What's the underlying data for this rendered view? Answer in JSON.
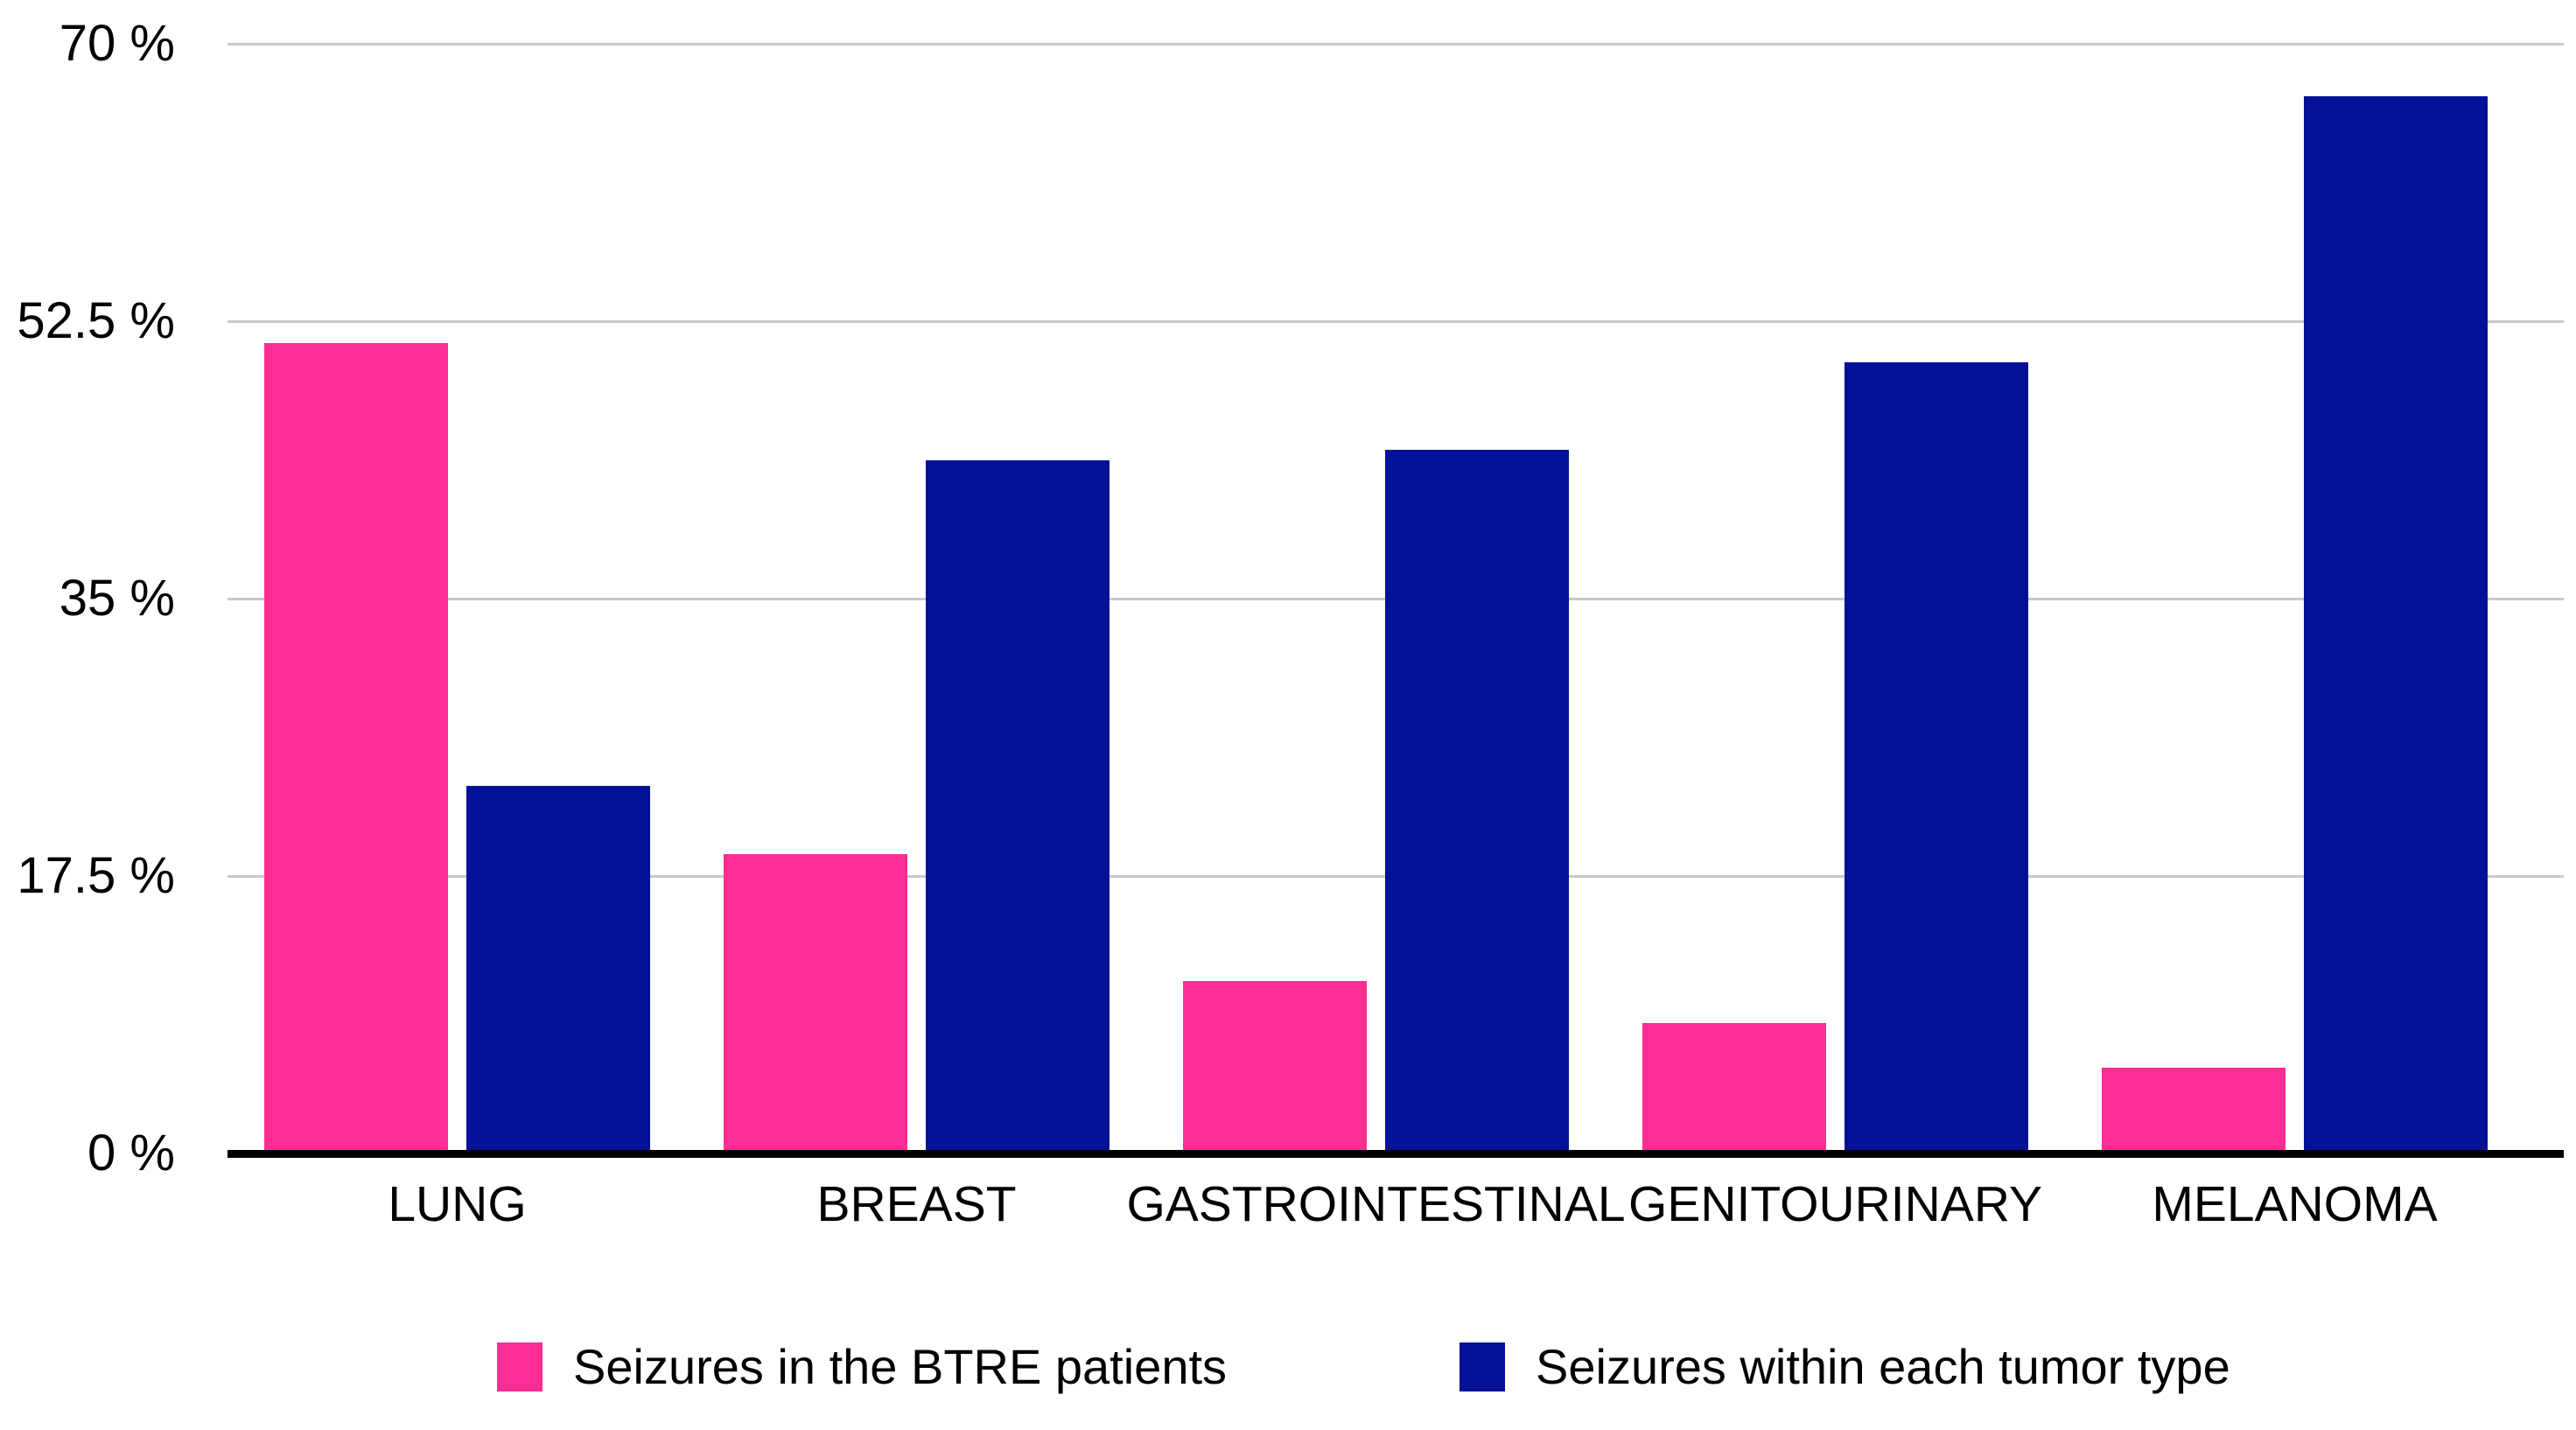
{
  "chart_data": {
    "type": "bar",
    "title": "",
    "xlabel": "",
    "ylabel": "",
    "categories": [
      "LUNG",
      "BREAST",
      "GASTROINTESTINAL",
      "GENITOURINARY",
      "MELANOMA"
    ],
    "series": [
      {
        "name": "Seizures in the BTRE patients",
        "color": "#FC2D94",
        "values": [
          51.1,
          18.9,
          10.9,
          8.2,
          5.4
        ]
      },
      {
        "name": "Seizures within each tumor type",
        "color": "#041196",
        "values": [
          23.2,
          43.7,
          44.4,
          49.9,
          66.7
        ]
      }
    ],
    "y_ticks": [
      {
        "value": 70,
        "label": "70 %"
      },
      {
        "value": 52.5,
        "label": "52.5 %"
      },
      {
        "value": 35,
        "label": "35 %"
      },
      {
        "value": 17.5,
        "label": "17.5 %"
      },
      {
        "value": 0,
        "label": "0 %"
      }
    ],
    "ylim": [
      0,
      70
    ],
    "grid": "horizontal",
    "legend_position": "bottom",
    "gridline_color": "#C9C9C9",
    "axis_color": "#000000",
    "text_color": "#000000",
    "background_color": "#FFFFFF"
  }
}
